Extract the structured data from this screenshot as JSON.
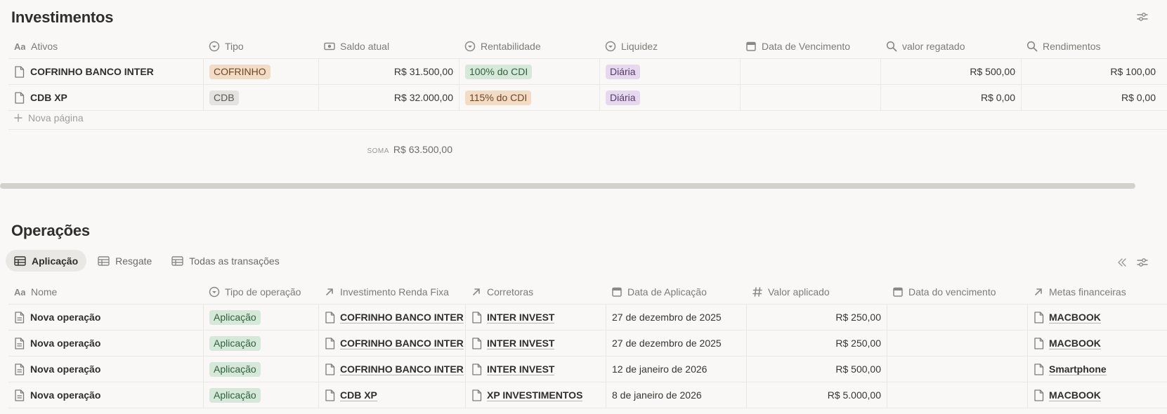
{
  "investimentos": {
    "title": "Investimentos",
    "columns": [
      {
        "label": "Ativos",
        "icon": "title-text-icon"
      },
      {
        "label": "Tipo",
        "icon": "select-icon"
      },
      {
        "label": "Saldo atual",
        "icon": "money-icon"
      },
      {
        "label": "Rentabilidade",
        "icon": "select-icon"
      },
      {
        "label": "Liquidez",
        "icon": "select-icon"
      },
      {
        "label": "Data de Vencimento",
        "icon": "calendar-icon"
      },
      {
        "label": "valor regatado",
        "icon": "search-icon"
      },
      {
        "label": "Rendimentos",
        "icon": "search-icon"
      }
    ],
    "rows": [
      {
        "ativo": "COFRINHO BANCO INTER",
        "tipo": "COFRINHO",
        "saldo": "R$ 31.500,00",
        "rentabilidade": "100% do CDI",
        "liquidez": "Diária",
        "vencimento": "",
        "resgatado": "R$ 500,00",
        "rendimentos": "R$ 100,00"
      },
      {
        "ativo": "CDB XP",
        "tipo": "CDB",
        "saldo": "R$ 32.000,00",
        "rentabilidade": "115% do CDI",
        "liquidez": "Diária",
        "vencimento": "",
        "resgatado": "R$ 0,00",
        "rendimentos": "R$ 0,00"
      }
    ],
    "new_page_label": "Nova página",
    "sum_label": "SOMA",
    "sum_value": "R$ 63.500,00"
  },
  "operacoes": {
    "title": "Operações",
    "tabs": [
      {
        "label": "Aplicação",
        "active": true
      },
      {
        "label": "Resgate",
        "active": false
      },
      {
        "label": "Todas as transações",
        "active": false
      }
    ],
    "columns": [
      {
        "label": "Nome",
        "icon": "title-text-icon"
      },
      {
        "label": "Tipo de operação",
        "icon": "select-icon"
      },
      {
        "label": "Investimento Renda Fixa",
        "icon": "relation-arrow-icon"
      },
      {
        "label": "Corretoras",
        "icon": "relation-arrow-icon"
      },
      {
        "label": "Data de Aplicação",
        "icon": "calendar-icon"
      },
      {
        "label": "Valor aplicado",
        "icon": "number-icon"
      },
      {
        "label": "Data do vencimento",
        "icon": "calendar-icon"
      },
      {
        "label": "Metas financeiras",
        "icon": "relation-arrow-icon"
      }
    ],
    "rows": [
      {
        "nome": "Nova operação",
        "tipo": "Aplicação",
        "investimento": "COFRINHO BANCO INTER",
        "corretora": "INTER INVEST",
        "data": "27 de dezembro de 2025",
        "valor": "R$ 250,00",
        "vencimento": "",
        "meta": "MACBOOK"
      },
      {
        "nome": "Nova operação",
        "tipo": "Aplicação",
        "investimento": "COFRINHO BANCO INTER",
        "corretora": "INTER INVEST",
        "data": "27 de dezembro de 2025",
        "valor": "R$ 250,00",
        "vencimento": "",
        "meta": "MACBOOK"
      },
      {
        "nome": "Nova operação",
        "tipo": "Aplicação",
        "investimento": "COFRINHO BANCO INTER",
        "corretora": "INTER INVEST",
        "data": "12 de janeiro de 2026",
        "valor": "R$ 500,00",
        "vencimento": "",
        "meta": "Smartphone"
      },
      {
        "nome": "Nova operação",
        "tipo": "Aplicação",
        "investimento": "CDB XP",
        "corretora": "XP INVESTIMENTOS",
        "data": "8 de janeiro de 2026",
        "valor": "R$ 5.000,00",
        "vencimento": "",
        "meta": "MACBOOK"
      }
    ]
  },
  "colors": {
    "background": "#f9f8f6",
    "tag_orange": "#f3dcc6",
    "tag_gray": "#e4e3df",
    "tag_green": "#d6e8da",
    "tag_purple": "#e6d9ef"
  }
}
